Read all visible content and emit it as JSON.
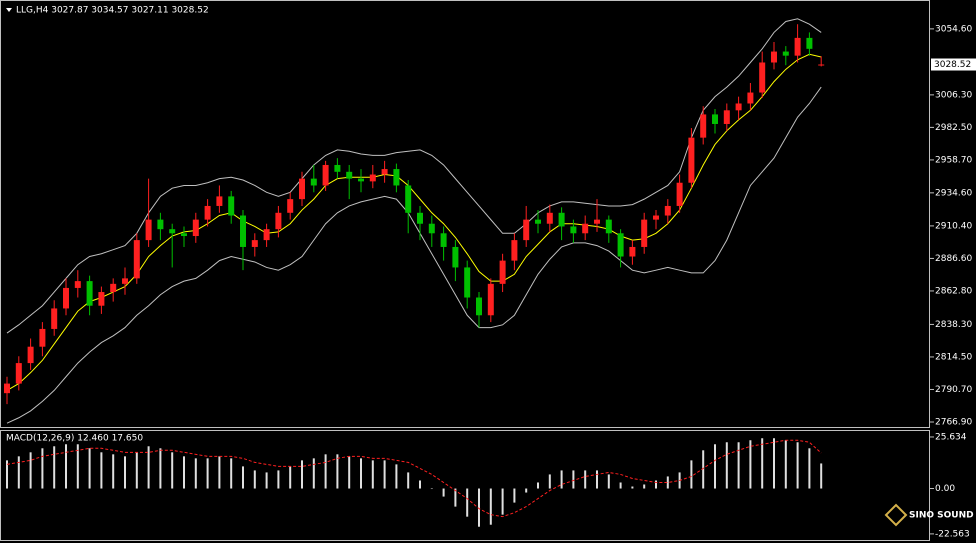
{
  "chart_data": [
    {
      "type": "candlestick",
      "title": "LLG,H4 3027.87 3034.57 3027.11 3028.52",
      "up_color": "#ff2020",
      "down_color": "#00c000",
      "ylim": [
        2762.5,
        3075
      ],
      "yticks": [
        {
          "value": 3054.6,
          "label": "3054.60"
        },
        {
          "value": 3006.3,
          "label": "3006.30"
        },
        {
          "value": 2982.5,
          "label": "2982.50"
        },
        {
          "value": 2958.7,
          "label": "2958.70"
        },
        {
          "value": 2934.6,
          "label": "2934.60"
        },
        {
          "value": 2910.4,
          "label": "2910.40"
        },
        {
          "value": 2886.6,
          "label": "2886.60"
        },
        {
          "value": 2862.8,
          "label": "2862.80"
        },
        {
          "value": 2838.3,
          "label": "2838.30"
        },
        {
          "value": 2814.5,
          "label": "2814.50"
        },
        {
          "value": 2790.7,
          "label": "2790.70"
        },
        {
          "value": 2766.9,
          "label": "2766.90"
        }
      ],
      "candles": [
        [
          2788,
          2800,
          2780,
          2795
        ],
        [
          2795,
          2815,
          2790,
          2810
        ],
        [
          2810,
          2828,
          2805,
          2822
        ],
        [
          2822,
          2840,
          2815,
          2835
        ],
        [
          2835,
          2856,
          2830,
          2850
        ],
        [
          2850,
          2872,
          2845,
          2865
        ],
        [
          2865,
          2878,
          2858,
          2870
        ],
        [
          2870,
          2874,
          2845,
          2852
        ],
        [
          2852,
          2866,
          2846,
          2862
        ],
        [
          2862,
          2872,
          2855,
          2868
        ],
        [
          2868,
          2880,
          2860,
          2872
        ],
        [
          2872,
          2905,
          2868,
          2900
        ],
        [
          2900,
          2945,
          2895,
          2915
        ],
        [
          2915,
          2920,
          2900,
          2908
        ],
        [
          2908,
          2912,
          2880,
          2905
        ],
        [
          2905,
          2910,
          2895,
          2903
        ],
        [
          2903,
          2920,
          2898,
          2915
        ],
        [
          2915,
          2930,
          2910,
          2925
        ],
        [
          2925,
          2940,
          2920,
          2932
        ],
        [
          2932,
          2936,
          2912,
          2918
        ],
        [
          2918,
          2922,
          2878,
          2895
        ],
        [
          2895,
          2905,
          2888,
          2900
        ],
        [
          2900,
          2912,
          2895,
          2908
        ],
        [
          2908,
          2925,
          2902,
          2920
        ],
        [
          2920,
          2935,
          2915,
          2930
        ],
        [
          2930,
          2950,
          2925,
          2945
        ],
        [
          2945,
          2955,
          2935,
          2940
        ],
        [
          2940,
          2958,
          2936,
          2955
        ],
        [
          2955,
          2960,
          2945,
          2950
        ],
        [
          2950,
          2955,
          2930,
          2945
        ],
        [
          2945,
          2952,
          2935,
          2943
        ],
        [
          2943,
          2955,
          2938,
          2948
        ],
        [
          2948,
          2958,
          2942,
          2952
        ],
        [
          2952,
          2956,
          2935,
          2940
        ],
        [
          2940,
          2944,
          2905,
          2920
        ],
        [
          2920,
          2925,
          2900,
          2912
        ],
        [
          2912,
          2918,
          2895,
          2905
        ],
        [
          2905,
          2910,
          2885,
          2895
        ],
        [
          2895,
          2900,
          2870,
          2880
        ],
        [
          2880,
          2885,
          2850,
          2858
        ],
        [
          2858,
          2862,
          2836,
          2845
        ],
        [
          2845,
          2872,
          2840,
          2868
        ],
        [
          2868,
          2890,
          2862,
          2885
        ],
        [
          2885,
          2905,
          2878,
          2900
        ],
        [
          2900,
          2925,
          2895,
          2915
        ],
        [
          2915,
          2922,
          2905,
          2912
        ],
        [
          2912,
          2926,
          2906,
          2920
        ],
        [
          2920,
          2924,
          2900,
          2910
        ],
        [
          2910,
          2915,
          2898,
          2905
        ],
        [
          2905,
          2918,
          2900,
          2912
        ],
        [
          2912,
          2930,
          2906,
          2915
        ],
        [
          2915,
          2918,
          2898,
          2905
        ],
        [
          2905,
          2908,
          2880,
          2888
        ],
        [
          2888,
          2900,
          2882,
          2895
        ],
        [
          2895,
          2920,
          2890,
          2915
        ],
        [
          2915,
          2922,
          2908,
          2918
        ],
        [
          2918,
          2930,
          2912,
          2925
        ],
        [
          2925,
          2948,
          2920,
          2942
        ],
        [
          2942,
          2982,
          2938,
          2975
        ],
        [
          2975,
          2998,
          2970,
          2992
        ],
        [
          2992,
          2996,
          2978,
          2985
        ],
        [
          2985,
          3000,
          2980,
          2995
        ],
        [
          2995,
          3005,
          2988,
          3000
        ],
        [
          3000,
          3015,
          2995,
          3008
        ],
        [
          3008,
          3038,
          3004,
          3030
        ],
        [
          3030,
          3045,
          3025,
          3038
        ],
        [
          3038,
          3042,
          3028,
          3035
        ],
        [
          3035,
          3058,
          3030,
          3048
        ],
        [
          3048,
          3052,
          3035,
          3040
        ],
        [
          3027.87,
          3034.57,
          3027.11,
          3028.52
        ]
      ],
      "lines": [
        {
          "color": "#c0c0c0",
          "values": [
            2832,
            2838,
            2845,
            2852,
            2862,
            2872,
            2882,
            2888,
            2890,
            2893,
            2896,
            2905,
            2920,
            2932,
            2938,
            2940,
            2940,
            2942,
            2945,
            2946,
            2944,
            2940,
            2935,
            2932,
            2935,
            2945,
            2955,
            2962,
            2966,
            2965,
            2963,
            2962,
            2962,
            2964,
            2965,
            2966,
            2962,
            2955,
            2945,
            2935,
            2925,
            2915,
            2905,
            2905,
            2912,
            2920,
            2925,
            2928,
            2928,
            2927,
            2926,
            2925,
            2925,
            2926,
            2930,
            2935,
            2940,
            2950,
            2975,
            2995,
            3005,
            3012,
            3020,
            3030,
            3040,
            3052,
            3060,
            3062,
            3058,
            3052
          ]
        },
        {
          "color": "#c0c0c0",
          "values": [
            2766,
            2770,
            2775,
            2782,
            2790,
            2800,
            2810,
            2818,
            2825,
            2830,
            2836,
            2845,
            2852,
            2860,
            2866,
            2870,
            2872,
            2878,
            2885,
            2888,
            2886,
            2884,
            2880,
            2878,
            2882,
            2888,
            2900,
            2912,
            2920,
            2925,
            2928,
            2930,
            2932,
            2930,
            2920,
            2905,
            2890,
            2875,
            2860,
            2845,
            2836,
            2836,
            2838,
            2845,
            2860,
            2875,
            2886,
            2895,
            2898,
            2898,
            2896,
            2892,
            2885,
            2878,
            2876,
            2878,
            2880,
            2878,
            2876,
            2876,
            2885,
            2900,
            2920,
            2940,
            2950,
            2960,
            2975,
            2990,
            3000,
            3012
          ]
        },
        {
          "color": "#ffff00",
          "values": [
            2790,
            2795,
            2803,
            2812,
            2824,
            2836,
            2848,
            2855,
            2858,
            2862,
            2866,
            2875,
            2888,
            2896,
            2903,
            2906,
            2907,
            2912,
            2918,
            2920,
            2914,
            2910,
            2905,
            2906,
            2912,
            2922,
            2930,
            2940,
            2945,
            2946,
            2946,
            2946,
            2948,
            2947,
            2940,
            2930,
            2920,
            2912,
            2902,
            2890,
            2877,
            2870,
            2870,
            2875,
            2888,
            2897,
            2906,
            2912,
            2912,
            2911,
            2910,
            2908,
            2903,
            2900,
            2901,
            2905,
            2912,
            2922,
            2938,
            2955,
            2970,
            2980,
            2988,
            2995,
            3005,
            3016,
            3025,
            3032,
            3036,
            3034
          ]
        }
      ],
      "watermark": "SINO SOUND"
    },
    {
      "type": "macd",
      "title": "MACD(12,26,9) 12.460 17.650",
      "ylim": [
        -25.6,
        28.6
      ],
      "yticks": [
        {
          "value": 25.634,
          "label": "25.634"
        },
        {
          "value": 0,
          "label": "0.00"
        },
        {
          "value": -22.563,
          "label": "-22.563"
        }
      ],
      "histogram": {
        "color": "#e0e0e0",
        "values": [
          14,
          16,
          18,
          20,
          21,
          22,
          22,
          20,
          18,
          17,
          16,
          18,
          21,
          20,
          18,
          16,
          15,
          15,
          16,
          15,
          11,
          9,
          8,
          9,
          11,
          14,
          15,
          17,
          17,
          16,
          15,
          14,
          14,
          12,
          8,
          4,
          0,
          -4,
          -9,
          -14,
          -19,
          -18,
          -13,
          -7,
          -2,
          3,
          7,
          9,
          9,
          9,
          9,
          7,
          3,
          1,
          2,
          4,
          6,
          8,
          14,
          19,
          22,
          23,
          23,
          24,
          25,
          25,
          24,
          23,
          20,
          12.46
        ]
      },
      "signal": {
        "color": "#ff2020",
        "values": [
          12,
          13,
          14,
          16,
          17,
          18,
          19,
          20,
          20,
          19,
          18,
          18,
          18,
          19,
          19,
          18,
          17,
          16,
          16,
          16,
          15,
          13,
          12,
          11,
          11,
          11,
          12,
          13,
          15,
          16,
          16,
          15,
          15,
          14,
          13,
          10,
          7,
          3,
          -1,
          -5,
          -10,
          -13,
          -14,
          -12,
          -9,
          -5,
          -1,
          2,
          4,
          6,
          7,
          8,
          7,
          5,
          4,
          3,
          3,
          4,
          6,
          10,
          14,
          17,
          19,
          21,
          22,
          23,
          24,
          24,
          23,
          17.65
        ]
      }
    }
  ]
}
